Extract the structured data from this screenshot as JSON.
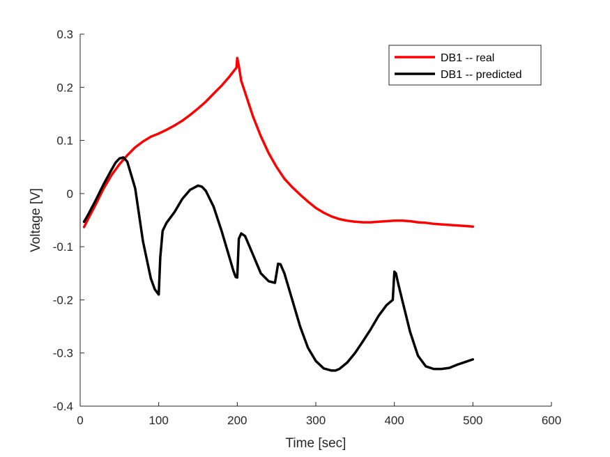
{
  "colors": {
    "real": "#ff0000",
    "predicted": "#000000",
    "axis": "#262626",
    "background": "#ffffff"
  },
  "chart_data": {
    "type": "line",
    "title": "",
    "xlabel": "Time [sec]",
    "ylabel": "Voltage [V]",
    "xlim": [
      0,
      600
    ],
    "ylim": [
      -0.4,
      0.3
    ],
    "xticks": [
      0,
      100,
      200,
      300,
      400,
      500,
      600
    ],
    "xtick_labels": [
      "0",
      "100",
      "200",
      "300",
      "400",
      "500",
      "600"
    ],
    "yticks": [
      -0.4,
      -0.3,
      -0.2,
      -0.1,
      0,
      0.1,
      0.2,
      0.3
    ],
    "ytick_labels": [
      "-0.4",
      "-0.3",
      "-0.2",
      "-0.1",
      "0",
      "0.1",
      "0.2",
      "0.3"
    ],
    "grid": false,
    "legend_position": "top-right",
    "series": [
      {
        "name": "DB1 -- real",
        "color": "#ff0000",
        "x": [
          5,
          10,
          20,
          30,
          40,
          50,
          60,
          70,
          80,
          90,
          100,
          110,
          120,
          130,
          140,
          150,
          160,
          170,
          180,
          190,
          199,
          200,
          202,
          205,
          210,
          220,
          230,
          240,
          250,
          260,
          270,
          280,
          290,
          300,
          310,
          320,
          330,
          340,
          350,
          360,
          370,
          380,
          390,
          400,
          410,
          420,
          430,
          440,
          450,
          460,
          470,
          480,
          490,
          500
        ],
        "y": [
          -0.063,
          -0.048,
          -0.02,
          0.01,
          0.035,
          0.055,
          0.072,
          0.087,
          0.098,
          0.107,
          0.113,
          0.12,
          0.128,
          0.137,
          0.148,
          0.16,
          0.173,
          0.188,
          0.203,
          0.22,
          0.237,
          0.255,
          0.24,
          0.212,
          0.19,
          0.145,
          0.108,
          0.076,
          0.05,
          0.028,
          0.012,
          -0.002,
          -0.015,
          -0.027,
          -0.036,
          -0.043,
          -0.048,
          -0.051,
          -0.053,
          -0.054,
          -0.054,
          -0.053,
          -0.052,
          -0.051,
          -0.051,
          -0.052,
          -0.054,
          -0.055,
          -0.057,
          -0.058,
          -0.059,
          -0.06,
          -0.061,
          -0.062
        ]
      },
      {
        "name": "DB1 -- predicted",
        "color": "#000000",
        "x": [
          5,
          10,
          20,
          30,
          40,
          45,
          50,
          55,
          60,
          70,
          80,
          90,
          95,
          99,
          100,
          102,
          105,
          110,
          120,
          130,
          140,
          150,
          155,
          160,
          170,
          180,
          190,
          195,
          198,
          200,
          202,
          205,
          210,
          220,
          230,
          240,
          248,
          250,
          252,
          255,
          260,
          270,
          280,
          290,
          300,
          310,
          320,
          325,
          330,
          340,
          350,
          360,
          370,
          380,
          390,
          398,
          400,
          402,
          405,
          410,
          420,
          430,
          440,
          450,
          460,
          470,
          480,
          490,
          500
        ],
        "y": [
          -0.053,
          -0.04,
          -0.012,
          0.018,
          0.045,
          0.058,
          0.066,
          0.068,
          0.06,
          0.01,
          -0.09,
          -0.16,
          -0.18,
          -0.188,
          -0.19,
          -0.12,
          -0.07,
          -0.055,
          -0.035,
          -0.01,
          0.007,
          0.015,
          0.013,
          0.005,
          -0.025,
          -0.07,
          -0.12,
          -0.145,
          -0.157,
          -0.158,
          -0.085,
          -0.075,
          -0.08,
          -0.115,
          -0.15,
          -0.165,
          -0.168,
          -0.15,
          -0.132,
          -0.133,
          -0.15,
          -0.2,
          -0.25,
          -0.29,
          -0.315,
          -0.329,
          -0.333,
          -0.333,
          -0.33,
          -0.318,
          -0.3,
          -0.278,
          -0.255,
          -0.23,
          -0.21,
          -0.2,
          -0.147,
          -0.15,
          -0.17,
          -0.2,
          -0.26,
          -0.305,
          -0.325,
          -0.33,
          -0.33,
          -0.328,
          -0.322,
          -0.317,
          -0.312
        ]
      }
    ]
  }
}
